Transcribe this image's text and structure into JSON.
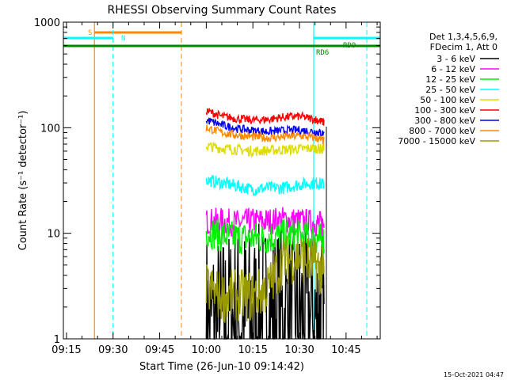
{
  "chart_data": {
    "type": "line",
    "title": "RHESSI Observing Summary Count Rates",
    "xlabel": "Start Time (26-Jun-10 09:14:42)",
    "ylabel": "Count Rate (s⁻¹ detector⁻¹)",
    "y_scale": "log",
    "ylim": [
      1,
      1000
    ],
    "xlim": [
      "09:14",
      "10:56"
    ],
    "x_ticks": [
      "09:15",
      "09:30",
      "09:45",
      "10:00",
      "10:15",
      "10:30",
      "10:45"
    ],
    "y_ticks": [
      "1",
      "10",
      "100",
      "1000"
    ],
    "legend_position": "right",
    "legend_header": [
      "Det 1,3,4,5,6,9,",
      "FDecim 1, Att 0"
    ],
    "series": [
      {
        "name": "3 - 6 keV",
        "color": "#000000",
        "x": [
          "10:00",
          "10:05",
          "10:10",
          "10:15",
          "10:20",
          "10:25",
          "10:30",
          "10:35",
          "10:38"
        ],
        "values": [
          1.4,
          1.3,
          1.6,
          1.5,
          1.7,
          1.5,
          1.6,
          1.5,
          1.4
        ]
      },
      {
        "name": "6 - 12 keV",
        "color": "#ff00ff",
        "x": [
          "10:00",
          "10:05",
          "10:10",
          "10:15",
          "10:20",
          "10:25",
          "10:30",
          "10:35",
          "10:38"
        ],
        "values": [
          13,
          13,
          12.5,
          13,
          13,
          13.5,
          13,
          12.5,
          12
        ]
      },
      {
        "name": "12 - 25 keV",
        "color": "#00ee00",
        "x": [
          "10:00",
          "10:05",
          "10:10",
          "10:15",
          "10:20",
          "10:25",
          "10:30",
          "10:35",
          "10:38"
        ],
        "values": [
          10.5,
          9.5,
          9,
          9,
          9,
          9.5,
          9.5,
          9,
          8.5
        ]
      },
      {
        "name": "25 - 50 keV",
        "color": "#00ffff",
        "x": [
          "10:00",
          "10:05",
          "10:10",
          "10:15",
          "10:20",
          "10:25",
          "10:30",
          "10:35",
          "10:38"
        ],
        "values": [
          32,
          30,
          28,
          26,
          27,
          27,
          29,
          30,
          29
        ]
      },
      {
        "name": "50 - 100 keV",
        "color": "#dddd00",
        "x": [
          "10:00",
          "10:05",
          "10:10",
          "10:15",
          "10:20",
          "10:25",
          "10:30",
          "10:35",
          "10:38"
        ],
        "values": [
          67,
          64,
          62,
          60,
          61,
          62,
          63,
          64,
          62
        ]
      },
      {
        "name": "100 - 300 keV",
        "color": "#ff0000",
        "x": [
          "10:00",
          "10:05",
          "10:10",
          "10:15",
          "10:20",
          "10:25",
          "10:30",
          "10:35",
          "10:38"
        ],
        "values": [
          145,
          128,
          122,
          118,
          120,
          126,
          128,
          120,
          112
        ]
      },
      {
        "name": "300 - 800 keV",
        "color": "#0000ee",
        "x": [
          "10:00",
          "10:05",
          "10:10",
          "10:15",
          "10:20",
          "10:25",
          "10:30",
          "10:35",
          "10:38"
        ],
        "values": [
          118,
          106,
          98,
          94,
          92,
          94,
          95,
          92,
          88
        ]
      },
      {
        "name": "800 - 7000 keV",
        "color": "#ff8800",
        "x": [
          "10:00",
          "10:05",
          "10:10",
          "10:15",
          "10:20",
          "10:25",
          "10:30",
          "10:35",
          "10:38"
        ],
        "values": [
          100,
          90,
          85,
          82,
          80,
          82,
          84,
          80,
          75
        ]
      },
      {
        "name": "7000 - 15000 keV",
        "color": "#999900",
        "x": [
          "10:00",
          "10:05",
          "10:10",
          "10:15",
          "10:20",
          "10:25",
          "10:30",
          "10:35",
          "10:38"
        ],
        "values": [
          3.0,
          2.5,
          2.6,
          2.5,
          3.0,
          5.5,
          6.0,
          5.0,
          4.0
        ]
      }
    ],
    "annotations": [
      {
        "label": "S",
        "color": "#ff8800",
        "x_start": "09:24",
        "x_end": "09:52"
      },
      {
        "label": "N",
        "color": "#00ffff",
        "x_start": "09:14",
        "x_end": "09:30"
      },
      {
        "label": "RD6",
        "color": "#008800"
      },
      {
        "label": "RD9",
        "color": "#008800"
      }
    ],
    "timestamp": "15-Oct-2021 04:47"
  }
}
